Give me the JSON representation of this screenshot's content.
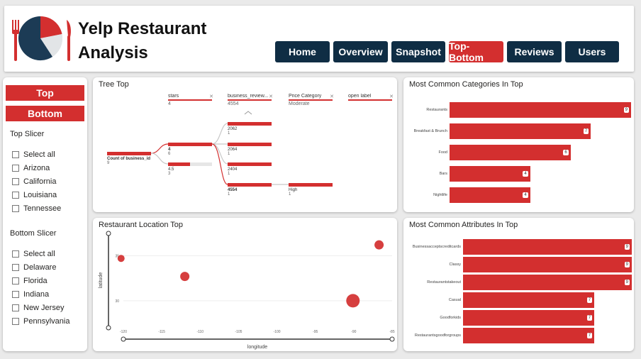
{
  "header": {
    "title_line1": "Yelp Restaurant",
    "title_line2": "Analysis",
    "logo_icon": "plate-fork-knife-icon",
    "nav": [
      {
        "label": "Home",
        "active": false
      },
      {
        "label": "Overview",
        "active": false
      },
      {
        "label": "Snapshot",
        "active": false
      },
      {
        "label": "Top-Bottom",
        "active": true
      },
      {
        "label": "Reviews",
        "active": false
      },
      {
        "label": "Users",
        "active": false
      }
    ]
  },
  "slicers": {
    "top_button": "Top",
    "bottom_button": "Bottom",
    "top_slicer_title": "Top Slicer",
    "top_items": [
      "Select all",
      "Arizona",
      "California",
      "Louisiana",
      "Tennessee"
    ],
    "bottom_slicer_title": "Bottom Slicer",
    "bottom_items": [
      "Select all",
      "Delaware",
      "Florida",
      "Indiana",
      "New Jersey",
      "Pennsylvania"
    ]
  },
  "tree": {
    "title": "Tree Top",
    "levels": [
      {
        "name": "stars",
        "value": "4"
      },
      {
        "name": "business_review...",
        "value": "4554"
      },
      {
        "name": "Price Category",
        "value": "Moderate"
      },
      {
        "name": "open label",
        "value": ""
      }
    ],
    "root": {
      "label": "Count of business_id",
      "count": "9"
    },
    "level1": [
      {
        "label": "4",
        "count": "6",
        "fraction": 1.0,
        "bold": true
      },
      {
        "label": "4.5",
        "count": "3",
        "fraction": 0.5,
        "bold": false
      }
    ],
    "level2": [
      {
        "label": "2062",
        "count": "1",
        "fraction": 1.0,
        "bold": false
      },
      {
        "label": "2064",
        "count": "1",
        "fraction": 1.0,
        "bold": false
      },
      {
        "label": "2404",
        "count": "1",
        "fraction": 1.0,
        "bold": false
      },
      {
        "label": "4554",
        "count": "1",
        "fraction": 1.0,
        "bold": true
      }
    ],
    "level3": [
      {
        "label": "High",
        "count": "1",
        "fraction": 1.0,
        "bold": false
      }
    ]
  },
  "location": {
    "title": "Restaurant Location Top",
    "chart_data": {
      "type": "scatter",
      "xlabel": "longitude",
      "ylabel": "latitude",
      "xlim": [
        -120,
        -85
      ],
      "ylim": [
        27,
        37
      ],
      "x_ticks": [
        -120,
        -115,
        -110,
        -105,
        -100,
        -95,
        -90,
        -85
      ],
      "y_ticks": [
        30,
        35
      ],
      "points": [
        {
          "x": -120.3,
          "y": 34.7,
          "size": 1
        },
        {
          "x": -112.0,
          "y": 32.7,
          "size": 1.3
        },
        {
          "x": -86.7,
          "y": 36.2,
          "size": 1.3
        },
        {
          "x": -90.1,
          "y": 30.0,
          "size": 1.9
        }
      ],
      "color": "#d32f2f"
    }
  },
  "categories": {
    "title": "Most Common Categories In Top",
    "chart_data": {
      "type": "bar",
      "orientation": "horizontal",
      "categories": [
        "Restaurants",
        "Breakfast & Brunch",
        "Food",
        "Bars",
        "Nightlife"
      ],
      "values": [
        9,
        7,
        6,
        4,
        4
      ],
      "xlim": [
        0,
        9
      ],
      "color": "#d32f2f"
    }
  },
  "attributes": {
    "title": "Most Common Attributes In Top",
    "chart_data": {
      "type": "bar",
      "orientation": "horizontal",
      "categories": [
        "Businessacceptscreditcards",
        "Classy",
        "Restaurantstakeout",
        "Casual",
        "Goodforkids",
        "Restaurantsgoodforgroups"
      ],
      "values": [
        9,
        9,
        9,
        7,
        7,
        7
      ],
      "xlim": [
        0,
        9
      ],
      "color": "#d32f2f"
    }
  },
  "colors": {
    "accent": "#d32f2f",
    "nav_dark": "#0f2d44",
    "background": "#eaeaea"
  }
}
